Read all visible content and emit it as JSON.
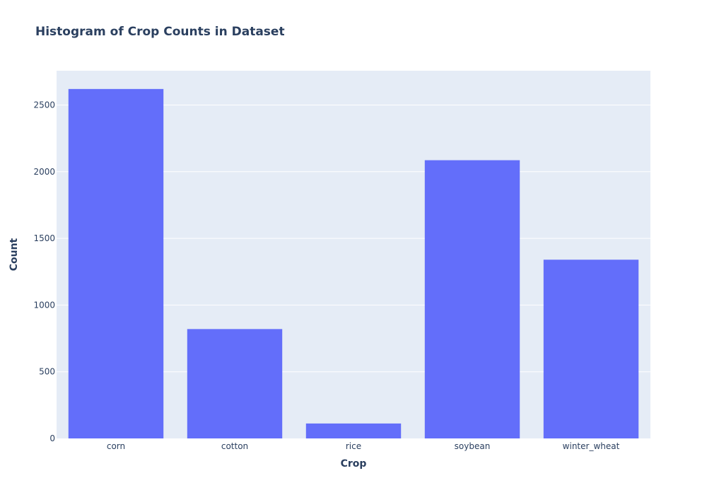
{
  "chart_data": {
    "type": "bar",
    "title": "Histogram of Crop Counts in Dataset",
    "xlabel": "Crop",
    "ylabel": "Count",
    "categories": [
      "corn",
      "cotton",
      "rice",
      "soybean",
      "winter_wheat"
    ],
    "values": [
      2620,
      820,
      112,
      2086,
      1340
    ],
    "ylim": [
      0,
      2757
    ],
    "yticks": [
      0,
      500,
      1000,
      1500,
      2000,
      2500
    ],
    "grid": true,
    "colors": {
      "bar": "#636efa",
      "plot_bg": "#e5ecf6",
      "text": "#2a3f5f"
    }
  }
}
